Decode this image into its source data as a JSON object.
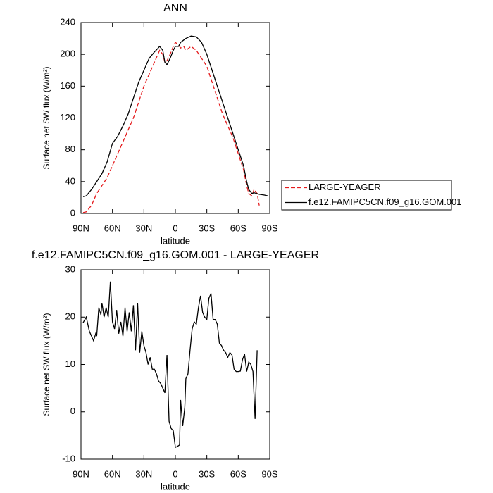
{
  "chart_data": [
    {
      "type": "line",
      "title": "ANN",
      "xlabel": "latitude",
      "ylabel": "Surface net SW flux (W/m²)",
      "xlim": [
        90,
        -90
      ],
      "xticks": [
        {
          "value": 90,
          "label": "90N"
        },
        {
          "value": 60,
          "label": "60N"
        },
        {
          "value": 30,
          "label": "30N"
        },
        0,
        {
          "value": -30,
          "label": "30S"
        },
        {
          "value": -60,
          "label": "60S"
        },
        {
          "value": -90,
          "label": "90S"
        }
      ],
      "ylim": [
        0,
        240
      ],
      "yticks": [
        0,
        40,
        80,
        120,
        160,
        200,
        240
      ],
      "legend": "right",
      "series": [
        {
          "name": "LARGE-YEAGER",
          "color": "#e41a1c",
          "dash": true,
          "x": [
            88,
            85,
            80,
            75,
            70,
            65,
            60,
            55,
            50,
            45,
            40,
            35,
            30,
            25,
            20,
            15,
            12,
            10,
            8,
            5,
            2,
            0,
            -3,
            -5,
            -8,
            -10,
            -15,
            -20,
            -25,
            -30,
            -35,
            -40,
            -45,
            -50,
            -55,
            -60,
            -65,
            -68,
            -70,
            -73,
            -75,
            -78,
            -80
          ],
          "values": [
            1,
            2,
            10,
            25,
            35,
            45,
            60,
            75,
            90,
            105,
            120,
            140,
            160,
            175,
            190,
            205,
            200,
            190,
            192,
            200,
            210,
            215,
            212,
            208,
            210,
            205,
            210,
            205,
            195,
            185,
            165,
            145,
            125,
            110,
            95,
            75,
            55,
            35,
            25,
            22,
            30,
            25,
            10
          ]
        },
        {
          "name": "f.e12.FAMIPC5CN.f09_g16.GOM.001",
          "color": "#000000",
          "dash": false,
          "x": [
            88,
            85,
            80,
            75,
            70,
            65,
            60,
            55,
            50,
            45,
            40,
            35,
            30,
            25,
            20,
            17,
            15,
            12,
            10,
            8,
            5,
            2,
            0,
            -3,
            -5,
            -10,
            -15,
            -20,
            -25,
            -30,
            -35,
            -40,
            -45,
            -50,
            -55,
            -60,
            -65,
            -68,
            -70,
            -73,
            -75,
            -80,
            -85,
            -88
          ],
          "values": [
            21,
            22,
            30,
            40,
            50,
            65,
            88,
            97,
            110,
            125,
            145,
            165,
            180,
            195,
            203,
            207,
            210,
            205,
            190,
            187,
            195,
            205,
            210,
            210,
            215,
            220,
            223,
            222,
            215,
            200,
            180,
            160,
            140,
            120,
            100,
            80,
            60,
            40,
            30,
            25,
            26,
            24,
            23,
            22
          ]
        }
      ]
    },
    {
      "type": "line",
      "title": "f.e12.FAMIPC5CN.f09_g16.GOM.001 - LARGE-YEAGER",
      "xlabel": "latitude",
      "ylabel": "Surface net SW flux (W/m²)",
      "xlim": [
        90,
        -90
      ],
      "xticks": [
        {
          "value": 90,
          "label": "90N"
        },
        {
          "value": 60,
          "label": "60N"
        },
        {
          "value": 30,
          "label": "30N"
        },
        0,
        {
          "value": -30,
          "label": "30S"
        },
        {
          "value": -60,
          "label": "60S"
        },
        {
          "value": -90,
          "label": "90S"
        }
      ],
      "ylim": [
        -10,
        30
      ],
      "yticks": [
        -10,
        0,
        10,
        20,
        30
      ],
      "color": "#000000",
      "x": [
        88,
        85,
        82,
        80,
        78,
        76,
        75,
        73,
        71,
        70,
        68,
        66,
        64,
        62,
        60,
        58,
        56,
        54,
        52,
        50,
        48,
        46,
        44,
        42,
        40,
        38,
        36,
        34,
        32,
        30,
        28,
        26,
        24,
        22,
        20,
        18,
        16,
        14,
        12,
        10,
        8,
        6,
        4,
        2,
        0,
        -2,
        -4,
        -5,
        -7,
        -9,
        -10,
        -12,
        -14,
        -16,
        -18,
        -20,
        -22,
        -24,
        -26,
        -28,
        -30,
        -32,
        -34,
        -36,
        -38,
        -40,
        -42,
        -44,
        -46,
        -48,
        -50,
        -52,
        -54,
        -56,
        -58,
        -60,
        -62,
        -64,
        -66,
        -68,
        -70,
        -72,
        -74,
        -76,
        -78
      ],
      "values": [
        18.8,
        20,
        17,
        16,
        15,
        16.5,
        16,
        22,
        20.5,
        23,
        20,
        22,
        20,
        27.5,
        19,
        17.5,
        21.5,
        16.5,
        19,
        16,
        22,
        17,
        21,
        17,
        22.5,
        13,
        23,
        12.5,
        17,
        14,
        12.5,
        10,
        11.5,
        9,
        9,
        8,
        6.5,
        6,
        5,
        4,
        12,
        -2,
        -3.5,
        -4,
        -7.5,
        -7.3,
        -7,
        2.5,
        -3,
        1,
        7,
        8,
        13,
        17.5,
        19,
        18.5,
        22,
        24.5,
        21,
        20,
        19.5,
        24,
        25,
        19.5,
        19.5,
        18.5,
        14.5,
        14,
        13,
        12.5,
        11.5,
        12.5,
        12,
        9,
        8.5,
        8.5,
        8.6,
        11,
        12.2,
        8.5,
        10.5,
        10,
        8.5,
        -1.5,
        13
      ]
    }
  ]
}
